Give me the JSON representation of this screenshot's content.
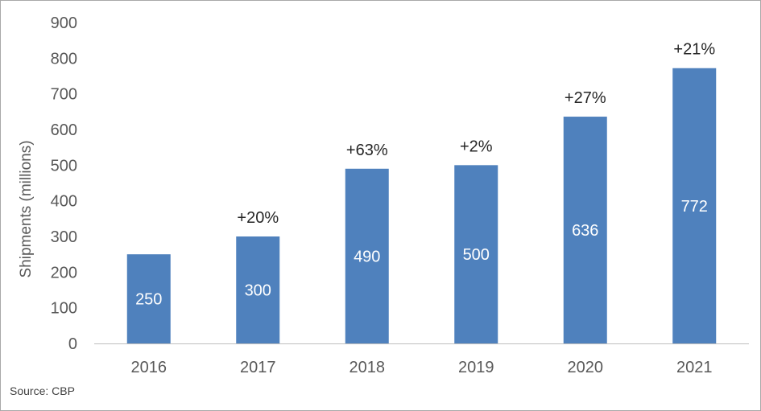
{
  "chart_data": {
    "type": "bar",
    "categories": [
      "2016",
      "2017",
      "2018",
      "2019",
      "2020",
      "2021"
    ],
    "values": [
      250,
      300,
      490,
      500,
      636,
      772
    ],
    "value_labels": [
      "250",
      "300",
      "490",
      "500",
      "636",
      "772"
    ],
    "change_labels": [
      "",
      "+20%",
      "+63%",
      "+2%",
      "+27%",
      "+21%"
    ],
    "ylabel": "Shipments (millions)",
    "xlabel": "",
    "ylim": [
      0,
      900
    ],
    "yticks": [
      0,
      100,
      200,
      300,
      400,
      500,
      600,
      700,
      800,
      900
    ],
    "bar_color": "#4f81bd",
    "grid": false
  },
  "source": "Source: CBP"
}
